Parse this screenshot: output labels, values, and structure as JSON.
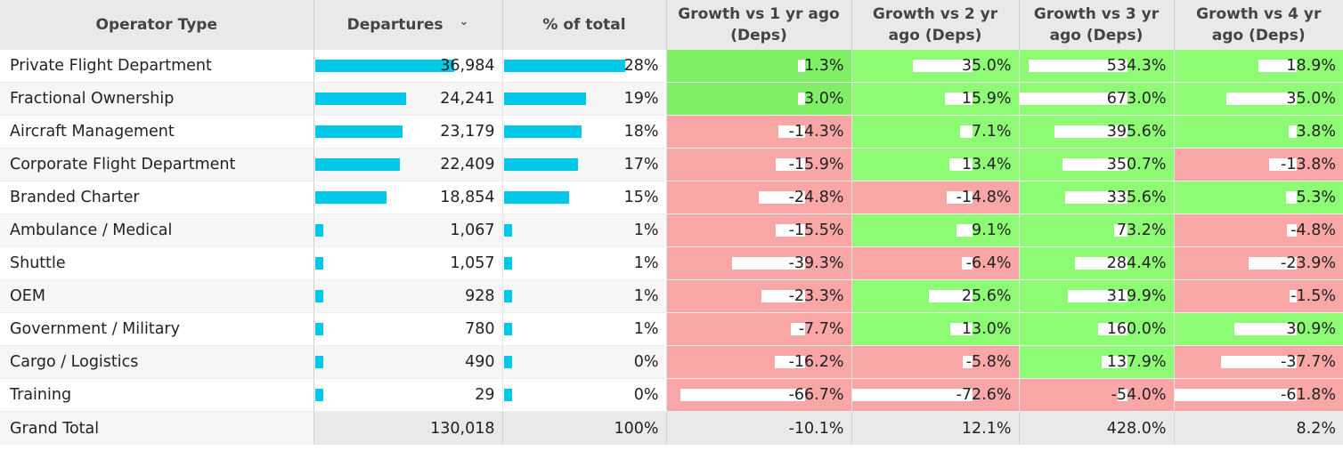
{
  "table": {
    "headers": {
      "operator_type": "Operator Type",
      "departures": "Departures",
      "pct_total": "% of total",
      "growth_1yr": "Growth vs 1 yr ago (Deps)",
      "growth_2yr": "Growth vs 2 yr ago (Deps)",
      "growth_3yr": "Growth vs 3 yr ago (Deps)",
      "growth_4yr": "Growth vs 4 yr ago (Deps)"
    },
    "sort_icon": "chevron-down-icon",
    "rows": [
      {
        "operator": "Private Flight Department",
        "departures": "36,984",
        "departures_num": 36984,
        "pct": "28%",
        "pct_num": 28,
        "g1": "1.3%",
        "g2": "35.0%",
        "g3": "534.3%",
        "g4": "18.9%"
      },
      {
        "operator": "Fractional Ownership",
        "departures": "24,241",
        "departures_num": 24241,
        "pct": "19%",
        "pct_num": 19,
        "g1": "3.0%",
        "g2": "15.9%",
        "g3": "673.0%",
        "g4": "35.0%"
      },
      {
        "operator": "Aircraft Management",
        "departures": "23,179",
        "departures_num": 23179,
        "pct": "18%",
        "pct_num": 18,
        "g1": "-14.3%",
        "g2": "7.1%",
        "g3": "395.6%",
        "g4": "3.8%"
      },
      {
        "operator": "Corporate Flight Department",
        "departures": "22,409",
        "departures_num": 22409,
        "pct": "17%",
        "pct_num": 17,
        "g1": "-15.9%",
        "g2": "13.4%",
        "g3": "350.7%",
        "g4": "-13.8%"
      },
      {
        "operator": "Branded Charter",
        "departures": "18,854",
        "departures_num": 18854,
        "pct": "15%",
        "pct_num": 15,
        "g1": "-24.8%",
        "g2": "-14.8%",
        "g3": "335.6%",
        "g4": "5.3%"
      },
      {
        "operator": "Ambulance / Medical",
        "departures": "1,067",
        "departures_num": 1067,
        "pct": "1%",
        "pct_num": 1,
        "g1": "-15.5%",
        "g2": "9.1%",
        "g3": "73.2%",
        "g4": "-4.8%"
      },
      {
        "operator": "Shuttle",
        "departures": "1,057",
        "departures_num": 1057,
        "pct": "1%",
        "pct_num": 1,
        "g1": "-39.3%",
        "g2": "-6.4%",
        "g3": "284.4%",
        "g4": "-23.9%"
      },
      {
        "operator": "OEM",
        "departures": "928",
        "departures_num": 928,
        "pct": "1%",
        "pct_num": 1,
        "g1": "-23.3%",
        "g2": "25.6%",
        "g3": "319.9%",
        "g4": "-1.5%"
      },
      {
        "operator": "Government / Military",
        "departures": "780",
        "departures_num": 780,
        "pct": "1%",
        "pct_num": 1,
        "g1": "-7.7%",
        "g2": "13.0%",
        "g3": "160.0%",
        "g4": "30.9%"
      },
      {
        "operator": "Cargo / Logistics",
        "departures": "490",
        "departures_num": 490,
        "pct": "0%",
        "pct_num": 0,
        "g1": "-16.2%",
        "g2": "-5.8%",
        "g3": "137.9%",
        "g4": "-37.7%"
      },
      {
        "operator": "Training",
        "departures": "29",
        "departures_num": 29,
        "pct": "0%",
        "pct_num": 0,
        "g1": "-66.7%",
        "g2": "-72.6%",
        "g3": "-54.0%",
        "g4": "-61.8%"
      }
    ],
    "total": {
      "label": "Grand Total",
      "departures": "130,018",
      "pct": "100%",
      "g1": "-10.1%",
      "g2": "12.1%",
      "g3": "428.0%",
      "g4": "8.2%"
    },
    "colors": {
      "bar": "#00c8e6",
      "positive": "#8dfc74",
      "negative": "#f8a6a6",
      "header_bg": "#e9e9e9",
      "total_bg": "#e9e9e9"
    }
  }
}
